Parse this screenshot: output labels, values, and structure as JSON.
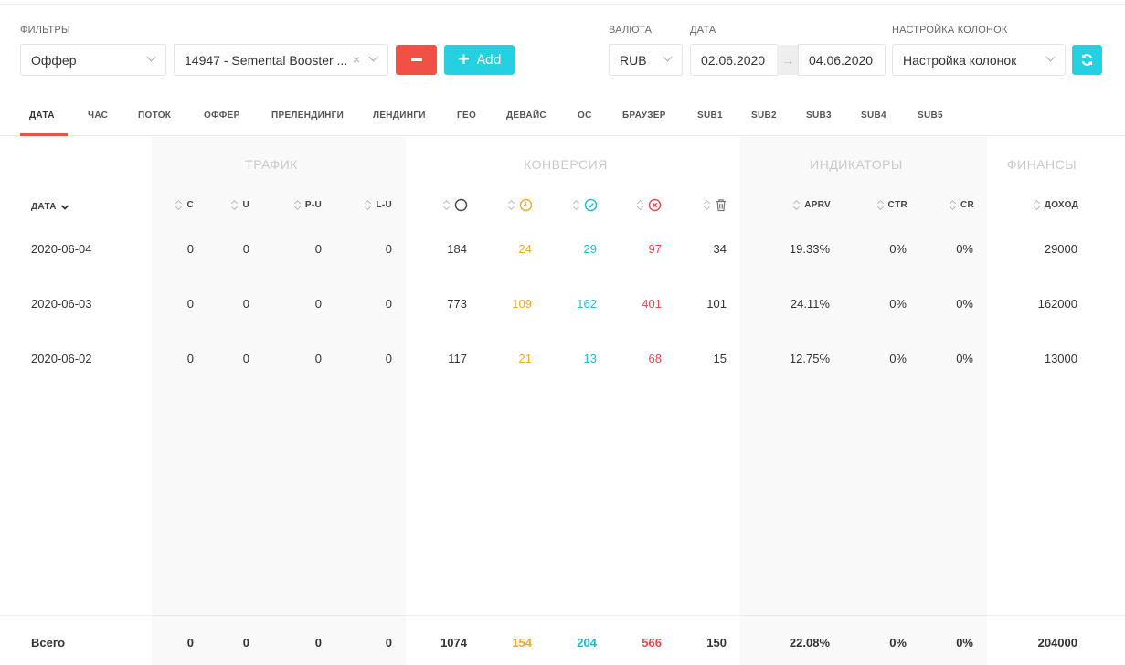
{
  "filters": {
    "label": "ФИЛЬТРЫ",
    "type_value": "Оффер",
    "offer_value": "14947 - Semental Booster ...",
    "clear_glyph": "×",
    "add_label": "Add"
  },
  "currency": {
    "label": "ВАЛЮТА",
    "value": "RUB"
  },
  "date": {
    "label": "ДАТА",
    "from": "02.06.2020",
    "to": "04.06.2020",
    "arrow": "→"
  },
  "columns_setting": {
    "label": "НАСТРОЙКА КОЛОНОК",
    "value": "Настройка колонок"
  },
  "tabs": [
    "ДАТА",
    "ЧАС",
    "ПОТОК",
    "ОФФЕР",
    "ПРЕЛЕНДИНГИ",
    "ЛЕНДИНГИ",
    "ГЕО",
    "ДЕВАЙС",
    "ОС",
    "БРАУЗЕР",
    "SUB1",
    "SUB2",
    "SUB3",
    "SUB4",
    "SUB5"
  ],
  "active_tab": "ДАТА",
  "groups": {
    "traffic": "ТРАФИК",
    "conversion": "КОНВЕРСИЯ",
    "indicators": "ИНДИКАТОРЫ",
    "finance": "ФИНАНСЫ"
  },
  "headers": {
    "date": "ДАТА",
    "c": "C",
    "u": "U",
    "pu": "P-U",
    "lu": "L-U",
    "aprv": "APRV",
    "ctr": "CTR",
    "cr": "CR",
    "income": "ДОХОД",
    "icons": [
      "circle-icon",
      "clock-icon",
      "check-circle-icon",
      "x-circle-icon",
      "trash-icon"
    ]
  },
  "rows": [
    {
      "date": "2020-06-04",
      "c": "0",
      "u": "0",
      "pu": "0",
      "lu": "0",
      "total": "184",
      "pending": "24",
      "approved": "29",
      "rejected": "97",
      "trash": "34",
      "aprv": "19.33%",
      "ctr": "0%",
      "cr": "0%",
      "income": "29000"
    },
    {
      "date": "2020-06-03",
      "c": "0",
      "u": "0",
      "pu": "0",
      "lu": "0",
      "total": "773",
      "pending": "109",
      "approved": "162",
      "rejected": "401",
      "trash": "101",
      "aprv": "24.11%",
      "ctr": "0%",
      "cr": "0%",
      "income": "162000"
    },
    {
      "date": "2020-06-02",
      "c": "0",
      "u": "0",
      "pu": "0",
      "lu": "0",
      "total": "117",
      "pending": "21",
      "approved": "13",
      "rejected": "68",
      "trash": "15",
      "aprv": "12.75%",
      "ctr": "0%",
      "cr": "0%",
      "income": "13000"
    }
  ],
  "totals": {
    "label": "Всего",
    "c": "0",
    "u": "0",
    "pu": "0",
    "lu": "0",
    "total": "1074",
    "pending": "154",
    "approved": "204",
    "rejected": "566",
    "trash": "150",
    "aprv": "22.08%",
    "ctr": "0%",
    "cr": "0%",
    "income": "204000"
  },
  "colors": {
    "accent_cyan": "#25d0e0",
    "danger_red": "#f05146",
    "pending_orange": "#f5a623",
    "approved_cyan": "#1cbcd0",
    "rejected_red": "#e8474a"
  }
}
